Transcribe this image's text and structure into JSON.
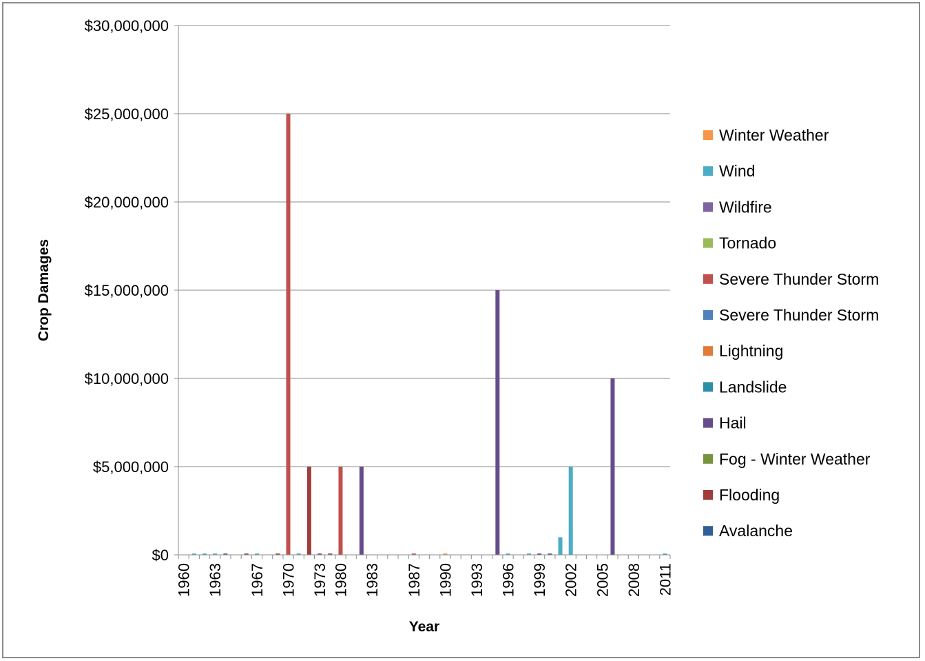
{
  "chart_data": {
    "type": "bar",
    "xlabel": "Year",
    "ylabel": "Crop Damages",
    "ylim": [
      0,
      30000000
    ],
    "yticks": [
      0,
      5000000,
      10000000,
      15000000,
      20000000,
      25000000,
      30000000
    ],
    "ytick_labels": [
      "$0",
      "$5,000,000",
      "$10,000,000",
      "$15,000,000",
      "$20,000,000",
      "$25,000,000",
      "$30,000,000"
    ],
    "grid": true,
    "legend_position": "right",
    "categories": [
      "1960",
      "1961",
      "1962",
      "1963",
      "1964",
      "1965",
      "1966",
      "1967",
      "1968",
      "1969",
      "1970",
      "1971",
      "1972",
      "1973",
      "1974",
      "1980",
      "1981",
      "1982",
      "1983",
      "1984",
      "1985",
      "1986",
      "1987",
      "1988",
      "1989",
      "1990",
      "1991",
      "1992",
      "1993",
      "1994",
      "1995",
      "1996",
      "1997",
      "1998",
      "1999",
      "2000",
      "2001",
      "2002",
      "2003",
      "2004",
      "2005",
      "2006",
      "2007",
      "2008",
      "2009",
      "2010",
      "2011"
    ],
    "xtick_labels": [
      "1960",
      "1963",
      "1967",
      "1970",
      "1973",
      "1980",
      "1983",
      "1987",
      "1990",
      "1993",
      "1996",
      "1999",
      "2002",
      "2005",
      "2008",
      "2011"
    ],
    "series": [
      {
        "name": "Winter Weather",
        "color": "#F79646",
        "values": [
          0,
          0,
          0,
          0,
          0,
          0,
          0,
          0,
          0,
          0,
          0,
          0,
          0,
          0,
          0,
          0,
          0,
          0,
          0,
          0,
          0,
          0,
          0,
          0,
          0,
          50000,
          0,
          0,
          0,
          0,
          0,
          0,
          0,
          0,
          0,
          0,
          0,
          0,
          0,
          0,
          0,
          0,
          0,
          0,
          0,
          0,
          0
        ]
      },
      {
        "name": "Wind",
        "color": "#4BACC6",
        "values": [
          0,
          50000,
          50000,
          50000,
          0,
          0,
          0,
          50000,
          0,
          0,
          0,
          50000,
          0,
          0,
          0,
          0,
          0,
          0,
          0,
          0,
          0,
          0,
          0,
          0,
          0,
          0,
          0,
          0,
          0,
          0,
          0,
          50000,
          0,
          50000,
          0,
          0,
          1000000,
          5000000,
          0,
          0,
          0,
          0,
          0,
          0,
          0,
          0,
          50000
        ]
      },
      {
        "name": "Wildfire",
        "color": "#8064A2",
        "values": [
          0,
          0,
          0,
          0,
          0,
          0,
          0,
          0,
          0,
          0,
          0,
          0,
          0,
          0,
          0,
          0,
          0,
          0,
          0,
          0,
          0,
          0,
          0,
          0,
          0,
          0,
          0,
          0,
          0,
          0,
          0,
          0,
          0,
          0,
          0,
          0,
          0,
          0,
          0,
          0,
          0,
          0,
          0,
          0,
          0,
          0,
          0
        ]
      },
      {
        "name": "Tornado",
        "color": "#9BBB59",
        "values": [
          0,
          0,
          0,
          0,
          0,
          0,
          0,
          0,
          0,
          0,
          0,
          0,
          0,
          0,
          0,
          0,
          0,
          0,
          0,
          0,
          0,
          0,
          0,
          0,
          0,
          0,
          0,
          0,
          0,
          0,
          0,
          0,
          0,
          0,
          0,
          0,
          0,
          0,
          0,
          0,
          0,
          0,
          0,
          0,
          0,
          0,
          0
        ]
      },
      {
        "name": "Severe Thunder Storm",
        "color": "#C0504D",
        "values": [
          0,
          0,
          0,
          0,
          0,
          0,
          0,
          0,
          0,
          0,
          25000000,
          0,
          0,
          0,
          0,
          5000000,
          0,
          0,
          0,
          0,
          0,
          0,
          50000,
          0,
          0,
          0,
          0,
          0,
          0,
          0,
          0,
          0,
          0,
          0,
          0,
          0,
          0,
          0,
          0,
          0,
          0,
          0,
          0,
          0,
          0,
          0,
          0
        ]
      },
      {
        "name": "Severe Thunder Storm",
        "color": "#4F81BD",
        "values": [
          0,
          0,
          0,
          0,
          0,
          0,
          0,
          0,
          0,
          0,
          0,
          0,
          0,
          0,
          0,
          0,
          0,
          0,
          0,
          0,
          0,
          0,
          0,
          0,
          0,
          0,
          0,
          0,
          0,
          0,
          0,
          0,
          0,
          0,
          0,
          0,
          0,
          0,
          0,
          0,
          0,
          0,
          0,
          0,
          0,
          0,
          0
        ]
      },
      {
        "name": "Lightning",
        "color": "#E07B39",
        "values": [
          0,
          0,
          0,
          0,
          0,
          0,
          0,
          0,
          0,
          0,
          0,
          0,
          0,
          0,
          0,
          0,
          0,
          0,
          0,
          0,
          0,
          0,
          0,
          0,
          0,
          0,
          0,
          0,
          0,
          0,
          0,
          0,
          0,
          0,
          0,
          0,
          0,
          0,
          0,
          0,
          0,
          0,
          0,
          0,
          0,
          0,
          0
        ]
      },
      {
        "name": "Landslide",
        "color": "#2C8FA8",
        "values": [
          0,
          0,
          0,
          0,
          0,
          0,
          0,
          0,
          0,
          0,
          0,
          0,
          0,
          0,
          0,
          0,
          0,
          0,
          0,
          0,
          0,
          0,
          0,
          0,
          0,
          0,
          0,
          0,
          0,
          0,
          0,
          0,
          0,
          0,
          0,
          0,
          0,
          0,
          0,
          0,
          0,
          0,
          0,
          0,
          0,
          0,
          0
        ]
      },
      {
        "name": "Hail",
        "color": "#664C8C",
        "values": [
          0,
          0,
          0,
          0,
          50000,
          0,
          0,
          0,
          0,
          0,
          0,
          0,
          0,
          50000,
          0,
          0,
          0,
          5000000,
          0,
          0,
          0,
          0,
          0,
          0,
          0,
          0,
          0,
          0,
          0,
          0,
          15000000,
          0,
          0,
          0,
          50000,
          50000,
          0,
          0,
          0,
          0,
          0,
          10000000,
          0,
          0,
          0,
          0,
          0
        ]
      },
      {
        "name": "Fog - Winter Weather",
        "color": "#77933C",
        "values": [
          0,
          0,
          0,
          0,
          0,
          0,
          0,
          0,
          0,
          0,
          0,
          0,
          0,
          0,
          0,
          0,
          0,
          0,
          0,
          0,
          0,
          0,
          0,
          0,
          0,
          0,
          0,
          0,
          0,
          0,
          0,
          0,
          0,
          0,
          0,
          0,
          0,
          0,
          0,
          0,
          0,
          0,
          0,
          0,
          0,
          0,
          0
        ]
      },
      {
        "name": "Flooding",
        "color": "#9E3D3B",
        "values": [
          0,
          0,
          0,
          0,
          0,
          0,
          50000,
          0,
          0,
          50000,
          0,
          0,
          5000000,
          0,
          50000,
          0,
          0,
          0,
          0,
          0,
          0,
          0,
          0,
          0,
          0,
          0,
          0,
          0,
          0,
          0,
          0,
          0,
          0,
          0,
          0,
          0,
          0,
          0,
          0,
          0,
          0,
          0,
          0,
          0,
          0,
          0,
          0
        ]
      },
      {
        "name": "Avalanche",
        "color": "#2E5F97",
        "values": [
          0,
          0,
          0,
          0,
          0,
          0,
          0,
          0,
          0,
          0,
          0,
          0,
          0,
          0,
          0,
          0,
          0,
          0,
          0,
          0,
          0,
          0,
          0,
          0,
          0,
          0,
          0,
          0,
          0,
          0,
          0,
          0,
          0,
          0,
          0,
          0,
          0,
          0,
          0,
          0,
          0,
          0,
          0,
          0,
          0,
          0,
          0
        ]
      }
    ]
  }
}
